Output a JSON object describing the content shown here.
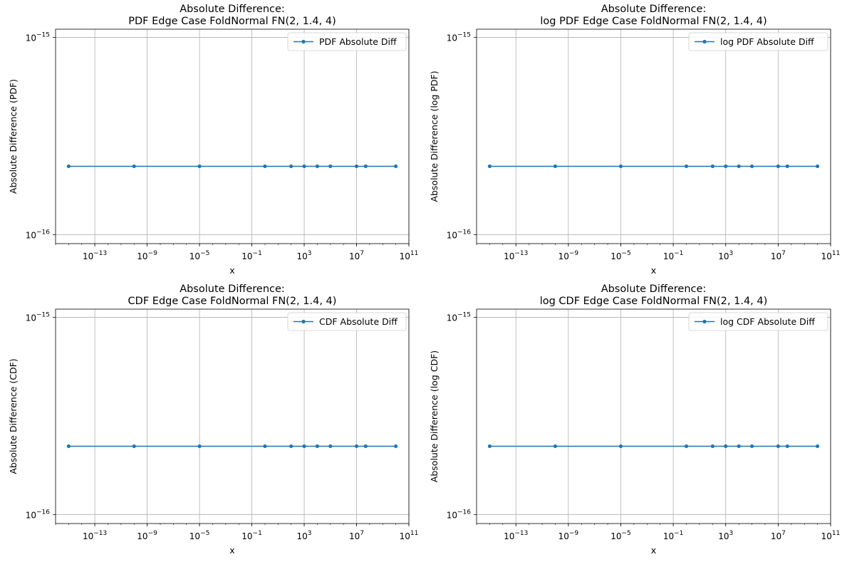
{
  "chart_data": [
    {
      "type": "line",
      "title": "Absolute Difference:\nPDF Edge Case FoldNormal FN(2, 1.4, 4)",
      "xlabel": "x",
      "ylabel": "Absolute Difference (PDF)",
      "xscale": "log",
      "yscale": "log",
      "xlim": [
        1e-16,
        100000000000.0
      ],
      "ylim": [
        9e-17,
        1.1e-15
      ],
      "xticks": [
        1e-13,
        1e-09,
        1e-05,
        0.1,
        1000,
        10000000,
        100000000000
      ],
      "xtick_labels": [
        {
          "base": "10",
          "exp": "−13"
        },
        {
          "base": "10",
          "exp": "−9"
        },
        {
          "base": "10",
          "exp": "−5"
        },
        {
          "base": "10",
          "exp": "−1"
        },
        {
          "base": "10",
          "exp": "3"
        },
        {
          "base": "10",
          "exp": "7"
        },
        {
          "base": "10",
          "exp": "11"
        }
      ],
      "yticks": [
        1e-16,
        1e-15
      ],
      "ytick_labels": [
        {
          "base": "10",
          "exp": "−16"
        },
        {
          "base": "10",
          "exp": "−15"
        }
      ],
      "grid": true,
      "legend_position": "top-right",
      "series": [
        {
          "name": "PDF Absolute Diff",
          "color": "#1f77b4",
          "marker": "circle",
          "x": [
            1e-15,
            1e-10,
            1e-05,
            1,
            100,
            1000,
            10000,
            100000,
            10000000,
            50000000,
            10000000000
          ],
          "y": [
            2.22e-16,
            2.22e-16,
            2.22e-16,
            2.22e-16,
            2.22e-16,
            2.22e-16,
            2.22e-16,
            2.22e-16,
            2.22e-16,
            2.22e-16,
            2.22e-16
          ]
        }
      ]
    },
    {
      "type": "line",
      "title": "Absolute Difference:\nlog PDF Edge Case FoldNormal FN(2, 1.4, 4)",
      "xlabel": "x",
      "ylabel": "Absolute Difference (log PDF)",
      "xscale": "log",
      "yscale": "log",
      "xlim": [
        1e-16,
        100000000000.0
      ],
      "ylim": [
        9e-17,
        1.1e-15
      ],
      "xticks": [
        1e-13,
        1e-09,
        1e-05,
        0.1,
        1000,
        10000000,
        100000000000
      ],
      "xtick_labels": [
        {
          "base": "10",
          "exp": "−13"
        },
        {
          "base": "10",
          "exp": "−9"
        },
        {
          "base": "10",
          "exp": "−5"
        },
        {
          "base": "10",
          "exp": "−1"
        },
        {
          "base": "10",
          "exp": "3"
        },
        {
          "base": "10",
          "exp": "7"
        },
        {
          "base": "10",
          "exp": "11"
        }
      ],
      "yticks": [
        1e-16,
        1e-15
      ],
      "ytick_labels": [
        {
          "base": "10",
          "exp": "−16"
        },
        {
          "base": "10",
          "exp": "−15"
        }
      ],
      "grid": true,
      "legend_position": "top-right",
      "series": [
        {
          "name": "log PDF Absolute Diff",
          "color": "#1f77b4",
          "marker": "circle",
          "x": [
            1e-15,
            1e-10,
            1e-05,
            1,
            100,
            1000,
            10000,
            100000,
            10000000,
            50000000,
            10000000000
          ],
          "y": [
            2.22e-16,
            2.22e-16,
            2.22e-16,
            2.22e-16,
            2.22e-16,
            2.22e-16,
            2.22e-16,
            2.22e-16,
            2.22e-16,
            2.22e-16,
            2.22e-16
          ]
        }
      ]
    },
    {
      "type": "line",
      "title": "Absolute Difference:\nCDF Edge Case FoldNormal FN(2, 1.4, 4)",
      "xlabel": "x",
      "ylabel": "Absolute Difference (CDF)",
      "xscale": "log",
      "yscale": "log",
      "xlim": [
        1e-16,
        100000000000.0
      ],
      "ylim": [
        9e-17,
        1.1e-15
      ],
      "xticks": [
        1e-13,
        1e-09,
        1e-05,
        0.1,
        1000,
        10000000,
        100000000000
      ],
      "xtick_labels": [
        {
          "base": "10",
          "exp": "−13"
        },
        {
          "base": "10",
          "exp": "−9"
        },
        {
          "base": "10",
          "exp": "−5"
        },
        {
          "base": "10",
          "exp": "−1"
        },
        {
          "base": "10",
          "exp": "3"
        },
        {
          "base": "10",
          "exp": "7"
        },
        {
          "base": "10",
          "exp": "11"
        }
      ],
      "yticks": [
        1e-16,
        1e-15
      ],
      "ytick_labels": [
        {
          "base": "10",
          "exp": "−16"
        },
        {
          "base": "10",
          "exp": "−15"
        }
      ],
      "grid": true,
      "legend_position": "top-right",
      "series": [
        {
          "name": "CDF Absolute Diff",
          "color": "#1f77b4",
          "marker": "circle",
          "x": [
            1e-15,
            1e-10,
            1e-05,
            1,
            100,
            1000,
            10000,
            100000,
            10000000,
            50000000,
            10000000000
          ],
          "y": [
            2.22e-16,
            2.22e-16,
            2.22e-16,
            2.22e-16,
            2.22e-16,
            2.22e-16,
            2.22e-16,
            2.22e-16,
            2.22e-16,
            2.22e-16,
            2.22e-16
          ]
        }
      ]
    },
    {
      "type": "line",
      "title": "Absolute Difference:\nlog CDF Edge Case FoldNormal FN(2, 1.4, 4)",
      "xlabel": "x",
      "ylabel": "Absolute Difference (log CDF)",
      "xscale": "log",
      "yscale": "log",
      "xlim": [
        1e-16,
        100000000000.0
      ],
      "ylim": [
        9e-17,
        1.1e-15
      ],
      "xticks": [
        1e-13,
        1e-09,
        1e-05,
        0.1,
        1000,
        10000000,
        100000000000
      ],
      "xtick_labels": [
        {
          "base": "10",
          "exp": "−13"
        },
        {
          "base": "10",
          "exp": "−9"
        },
        {
          "base": "10",
          "exp": "−5"
        },
        {
          "base": "10",
          "exp": "−1"
        },
        {
          "base": "10",
          "exp": "3"
        },
        {
          "base": "10",
          "exp": "7"
        },
        {
          "base": "10",
          "exp": "11"
        }
      ],
      "yticks": [
        1e-16,
        1e-15
      ],
      "ytick_labels": [
        {
          "base": "10",
          "exp": "−16"
        },
        {
          "base": "10",
          "exp": "−15"
        }
      ],
      "grid": true,
      "legend_position": "top-right",
      "series": [
        {
          "name": "log CDF Absolute Diff",
          "color": "#1f77b4",
          "marker": "circle",
          "x": [
            1e-15,
            1e-10,
            1e-05,
            1,
            100,
            1000,
            10000,
            100000,
            10000000,
            50000000,
            10000000000
          ],
          "y": [
            2.22e-16,
            2.22e-16,
            2.22e-16,
            2.22e-16,
            2.22e-16,
            2.22e-16,
            2.22e-16,
            2.22e-16,
            2.22e-16,
            2.22e-16,
            2.22e-16
          ]
        }
      ]
    }
  ]
}
